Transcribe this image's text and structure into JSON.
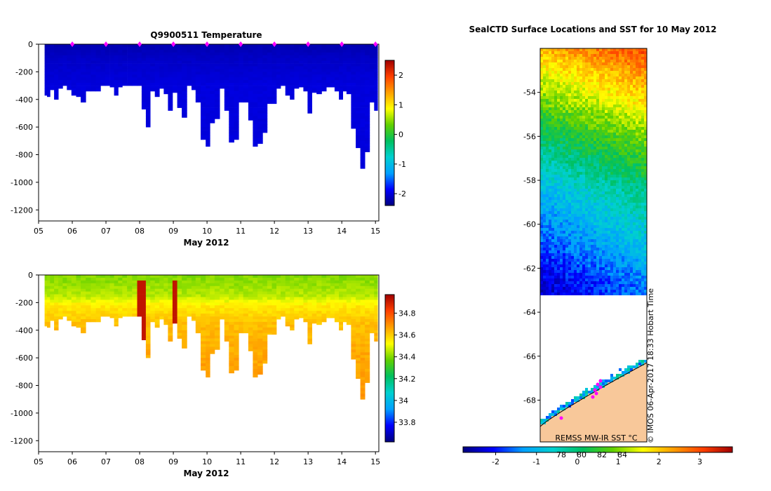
{
  "chart_data": [
    {
      "type": "heatmap",
      "title": "Q9900511  Temperature",
      "xlabel": "May 2012",
      "ylabel": "",
      "x_ticks": [
        "05",
        "06",
        "07",
        "08",
        "09",
        "10",
        "11",
        "12",
        "13",
        "14",
        "15"
      ],
      "y_ticks": [
        0,
        -200,
        -400,
        -600,
        -800,
        -1000,
        -1200
      ],
      "ylim": [
        -1280,
        0
      ],
      "colorbar_ticks": [
        -2,
        -1,
        0,
        1,
        2
      ],
      "colorbar_range": [
        -2.4,
        2.5
      ],
      "colormap": [
        "#00007f",
        "#0000ff",
        "#00a0ff",
        "#00d0d0",
        "#00c060",
        "#60d000",
        "#ffff00",
        "#ffa000",
        "#ff4000",
        "#a00000"
      ],
      "profile_markers": [
        "06",
        "07",
        "08",
        "09",
        "10",
        "11",
        "12",
        "13",
        "14",
        "15"
      ],
      "profile_days": [
        5.22,
        5.28,
        5.4,
        5.52,
        5.65,
        5.78,
        5.9,
        6.05,
        6.18,
        6.32,
        6.48,
        6.62,
        6.78,
        6.9,
        7.05,
        7.18,
        7.3,
        7.42,
        7.55,
        7.7,
        7.85,
        8.0,
        8.12,
        8.25,
        8.38,
        8.52,
        8.65,
        8.78,
        8.9,
        9.05,
        9.18,
        9.32,
        9.48,
        9.6,
        9.72,
        9.9,
        10.02,
        10.15,
        10.3,
        10.45,
        10.58,
        10.72,
        10.88,
        11.0,
        11.15,
        11.3,
        11.42,
        11.58,
        11.72,
        11.85,
        12.0,
        12.12,
        12.25,
        12.4,
        12.52,
        12.65,
        12.8,
        12.92,
        13.05,
        13.18,
        13.32,
        13.48,
        13.6,
        13.72,
        13.85,
        13.98,
        14.08,
        14.2,
        14.35,
        14.48,
        14.62,
        14.75,
        14.9,
        15.02
      ],
      "profile_depths": [
        370,
        380,
        330,
        400,
        320,
        300,
        330,
        370,
        380,
        420,
        340,
        340,
        340,
        300,
        300,
        310,
        370,
        310,
        300,
        300,
        300,
        300,
        470,
        600,
        340,
        380,
        320,
        360,
        480,
        350,
        460,
        530,
        300,
        330,
        420,
        690,
        740,
        570,
        540,
        320,
        480,
        710,
        690,
        420,
        420,
        550,
        740,
        720,
        640,
        430,
        430,
        320,
        300,
        370,
        400,
        320,
        310,
        340,
        500,
        350,
        360,
        340,
        310,
        310,
        340,
        400,
        340,
        360,
        610,
        750,
        900,
        780,
        420,
        480
      ],
      "series_top": [
        {
          "name": "Temperature",
          "stops": [
            [
              0,
              -2.2
            ],
            [
              100,
              -2.1
            ],
            [
              300,
              -2.0
            ]
          ]
        }
      ]
    },
    {
      "type": "heatmap",
      "title": "",
      "xlabel": "May 2012",
      "ylabel": "",
      "x_ticks": [
        "05",
        "06",
        "07",
        "08",
        "09",
        "10",
        "11",
        "12",
        "13",
        "14",
        "15"
      ],
      "y_ticks": [
        0,
        -200,
        -400,
        -600,
        -800,
        -1000,
        -1200
      ],
      "ylim": [
        -1280,
        0
      ],
      "colorbar_ticks": [
        33.8,
        34,
        34.2,
        34.4,
        34.6,
        34.8
      ],
      "colorbar_labels": [
        "33.8",
        "34",
        "34.2",
        "34.4",
        "34.6",
        "34.8"
      ],
      "colorbar_range": [
        33.62,
        34.97
      ],
      "colormap": [
        "#00007f",
        "#0000ff",
        "#00a0ff",
        "#00d0d0",
        "#00c060",
        "#60d000",
        "#ffff00",
        "#ffa000",
        "#ff4000",
        "#a00000"
      ],
      "high_columns": [
        8.05,
        9.06
      ],
      "series": [
        {
          "name": "Salinity",
          "stops": [
            [
              0,
              34.4
            ],
            [
              150,
              34.45
            ],
            [
              220,
              34.55
            ],
            [
              350,
              34.62
            ],
            [
              600,
              34.66
            ],
            [
              900,
              34.68
            ]
          ]
        }
      ]
    },
    {
      "type": "heatmap",
      "title": "SealCTD Surface Locations and SST for 10 May 2012",
      "xlabel": "",
      "ylabel": "",
      "y_ticks": [
        -54,
        -56,
        -58,
        -60,
        -62,
        -64,
        -66,
        -68
      ],
      "ylim": [
        -69.9,
        -52.0
      ],
      "colorbar_ticks": [
        -2,
        -1,
        0,
        1,
        2,
        3
      ],
      "colorbar_range": [
        -2.8,
        3.8
      ],
      "colorbar_lon_labels": [
        "78",
        "80",
        "82",
        "84"
      ],
      "colormap": [
        "#00007f",
        "#0000ff",
        "#00a0ff",
        "#00d0d0",
        "#00c060",
        "#60d000",
        "#ffff00",
        "#ffa000",
        "#ff4000",
        "#a00000"
      ],
      "sst_profile": [
        [
          -52.0,
          2.6
        ],
        [
          -53.0,
          2.0
        ],
        [
          -54.5,
          1.3
        ],
        [
          -56.0,
          0.5
        ],
        [
          -57.5,
          -0.1
        ],
        [
          -58.5,
          -0.6
        ],
        [
          -60.0,
          -1.0
        ],
        [
          -61.5,
          -1.5
        ],
        [
          -62.7,
          -1.9
        ]
      ],
      "ice_edge_lat": -63.2,
      "land_lat_left": -69.2,
      "land_lat_right": -66.3,
      "source_label": "REMSS MW-IR SST °C",
      "copyright": "© IMOS 06-Apr-2017 18:33 Hobart Time"
    }
  ]
}
